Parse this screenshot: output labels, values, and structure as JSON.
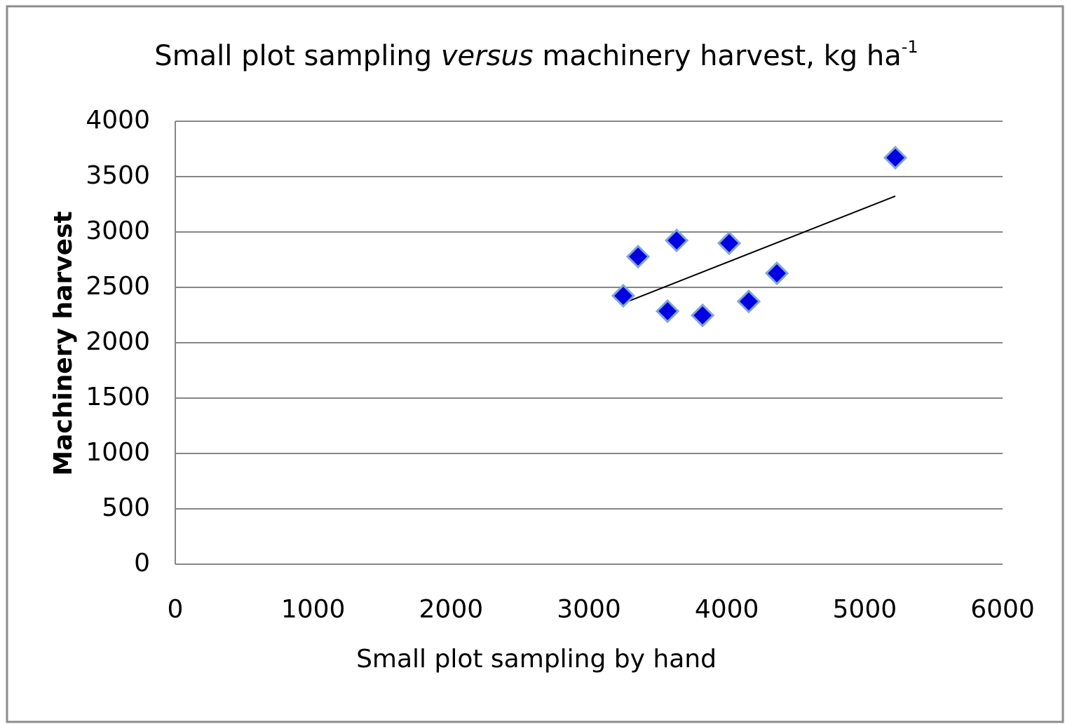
{
  "chart_data": {
    "type": "scatter",
    "title": [
      "Small plot sampling ",
      "versus",
      " machinery harvest, kg ha",
      "-1"
    ],
    "x_label": "Small plot sampling by hand",
    "y_label": "Machinery harvest",
    "series": [
      {
        "color": "#0000e0",
        "x": [
          3249,
          3356,
          3636,
          3570,
          3824,
          4017,
          4159,
          4363,
          5222
        ],
        "values": [
          2424,
          2778,
          2924,
          2285,
          2247,
          2899,
          2373,
          2627,
          3671
        ]
      }
    ],
    "trendline": true,
    "xlim": [
      0,
      6000
    ],
    "xticks": [
      0,
      1000,
      2000,
      3000,
      4000,
      5000,
      6000
    ],
    "ylim": [
      0,
      4000
    ],
    "yticks": [
      0,
      500,
      1000,
      1500,
      2000,
      2500,
      3000,
      3500,
      4000
    ],
    "grid": true
  }
}
